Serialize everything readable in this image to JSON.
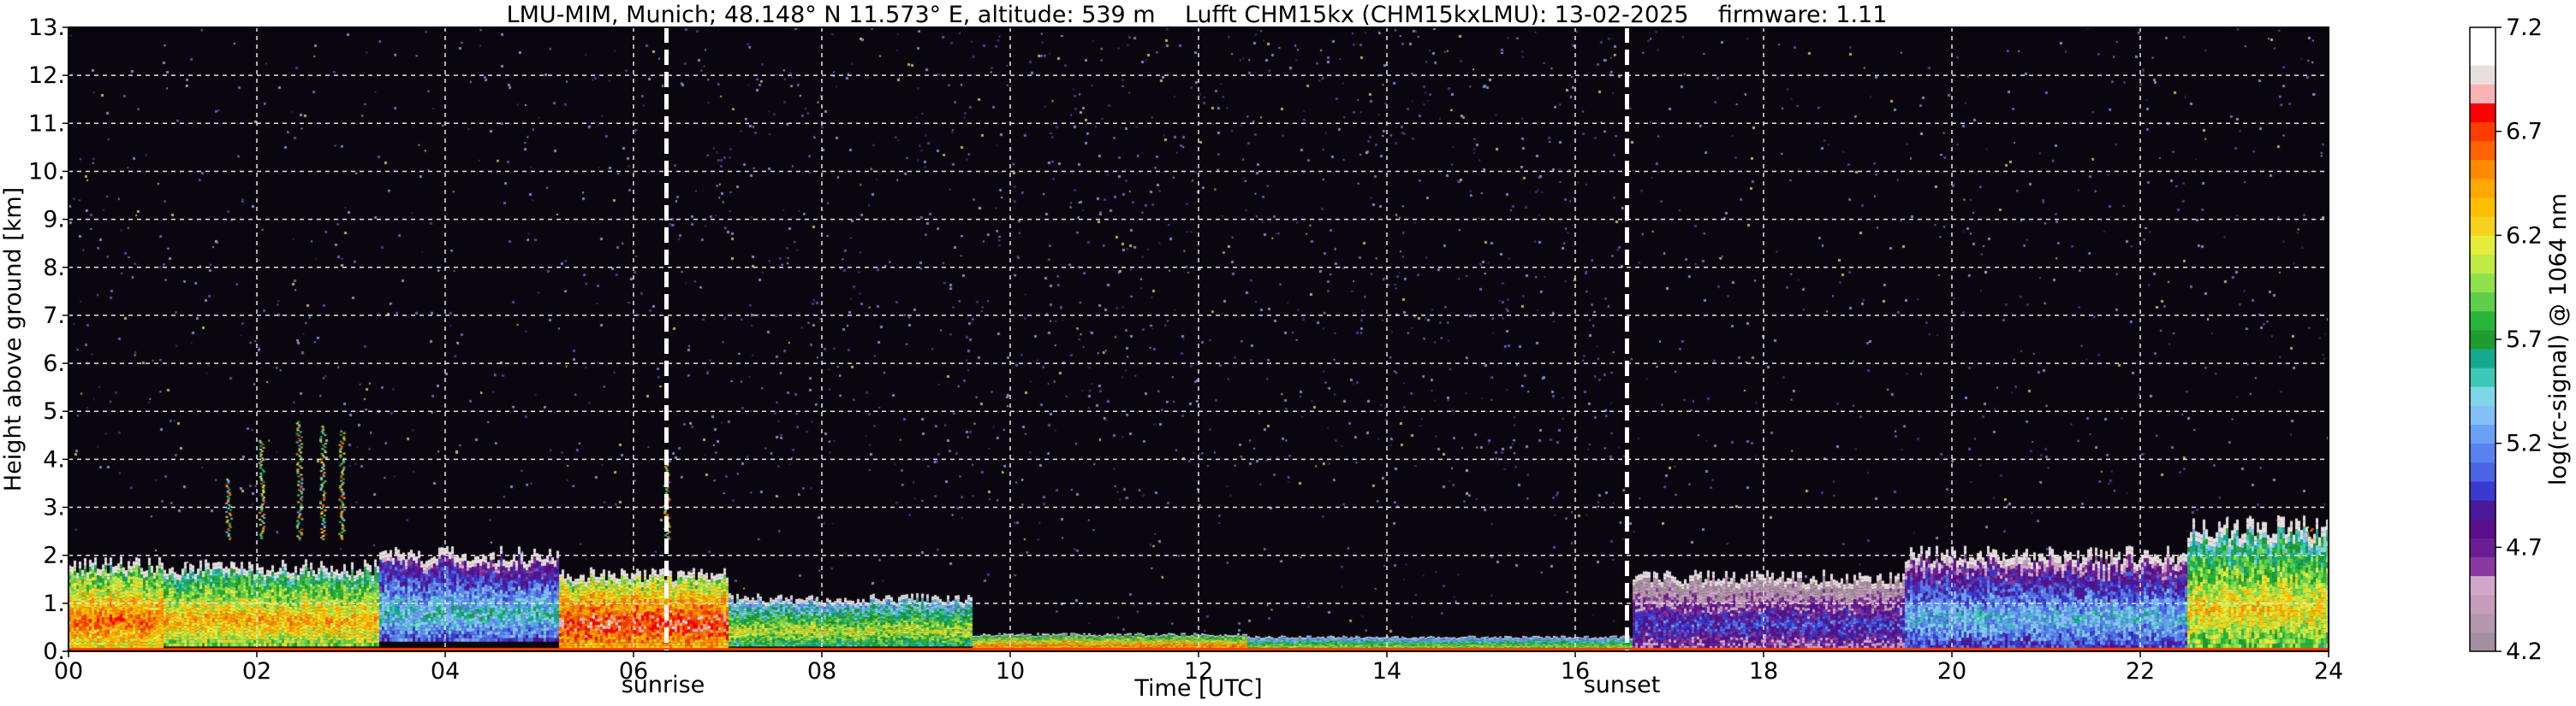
{
  "chart_data": {
    "type": "heatmap",
    "title": "LMU-MIM, Munich; 48.148° N 11.573° E, altitude: 539 m    Lufft CHM15kx (CHM15kxLMU): 13-02-2025    firmware: 1.11",
    "xlabel": "Time [UTC]",
    "ylabel": "Height above ground [km]",
    "xlim": [
      0,
      24
    ],
    "ylim": [
      0,
      13
    ],
    "x_ticks": [
      "00",
      "02",
      "04",
      "06",
      "08",
      "10",
      "12",
      "14",
      "16",
      "18",
      "20",
      "22",
      "24"
    ],
    "y_ticks": [
      "0.",
      "1.",
      "2.",
      "3.",
      "4.",
      "5.",
      "6.",
      "7.",
      "8.",
      "9.",
      "10.",
      "11.",
      "12.",
      "13."
    ],
    "grid": true,
    "colorbar": {
      "label": "log(rc-signal) @ 1064 nm",
      "range": [
        4.2,
        7.2
      ],
      "ticks": [
        "4.2",
        "4.7",
        "5.2",
        "5.7",
        "6.2",
        "6.7",
        "7.2"
      ],
      "colors": [
        "#a3909f",
        "#b497ad",
        "#c59dbb",
        "#d2a6ca",
        "#8a3a9e",
        "#6a1e94",
        "#5a0f8a",
        "#4a1a9a",
        "#3a3ad2",
        "#4a64e6",
        "#5a82ef",
        "#6aa0f5",
        "#84bff9",
        "#7fd6e6",
        "#3cc8b4",
        "#14a98f",
        "#1f9b2f",
        "#27b43a",
        "#5fcf4b",
        "#8ee04d",
        "#c0ea45",
        "#e6ec3c",
        "#f5d21e",
        "#ffbf00",
        "#ffa800",
        "#ff8a00",
        "#ff6400",
        "#ff3c00",
        "#ff0000",
        "#f7b3b3",
        "#e8dede",
        "#ffffff",
        "#ffffff"
      ]
    },
    "annotations": [
      {
        "text": "sunrise",
        "x": 6.35
      },
      {
        "text": "sunset",
        "x": 16.55
      }
    ],
    "cloud_layers": [
      {
        "t0": 0.0,
        "t1": 1.0,
        "top": 1.8,
        "base": 0.05,
        "peak": 6.6
      },
      {
        "t0": 1.0,
        "t1": 3.3,
        "top": 1.75,
        "base": 0.1,
        "peak": 6.4
      },
      {
        "t0": 3.3,
        "t1": 5.2,
        "top": 2.0,
        "base": 0.2,
        "peak": 5.5
      },
      {
        "t0": 5.2,
        "t1": 7.0,
        "top": 1.6,
        "base": 0.05,
        "peak": 6.8
      },
      {
        "t0": 7.0,
        "t1": 9.6,
        "top": 1.1,
        "base": 0.1,
        "peak": 6.1
      },
      {
        "t0": 9.6,
        "t1": 12.5,
        "top": 0.35,
        "base": 0.0,
        "peak": 6.5
      },
      {
        "t0": 12.5,
        "t1": 16.6,
        "top": 0.3,
        "base": 0.0,
        "peak": 6.0
      },
      {
        "t0": 16.6,
        "t1": 19.5,
        "top": 1.55,
        "base": 0.05,
        "peak": 5.0
      },
      {
        "t0": 19.5,
        "t1": 22.5,
        "top": 2.0,
        "base": 0.05,
        "peak": 5.4
      },
      {
        "t0": 22.5,
        "t1": 24.0,
        "top": 2.6,
        "base": 0.05,
        "peak": 6.3
      }
    ],
    "plumes": [
      {
        "x": 1.7,
        "top": 3.6
      },
      {
        "x": 2.05,
        "top": 4.4
      },
      {
        "x": 2.45,
        "top": 4.8
      },
      {
        "x": 2.7,
        "top": 4.7
      },
      {
        "x": 2.9,
        "top": 4.6
      },
      {
        "x": 6.35,
        "top": 4.0
      },
      {
        "x": 9.45,
        "top": 2.1
      },
      {
        "x": 23.8,
        "top": 2.6
      }
    ]
  }
}
